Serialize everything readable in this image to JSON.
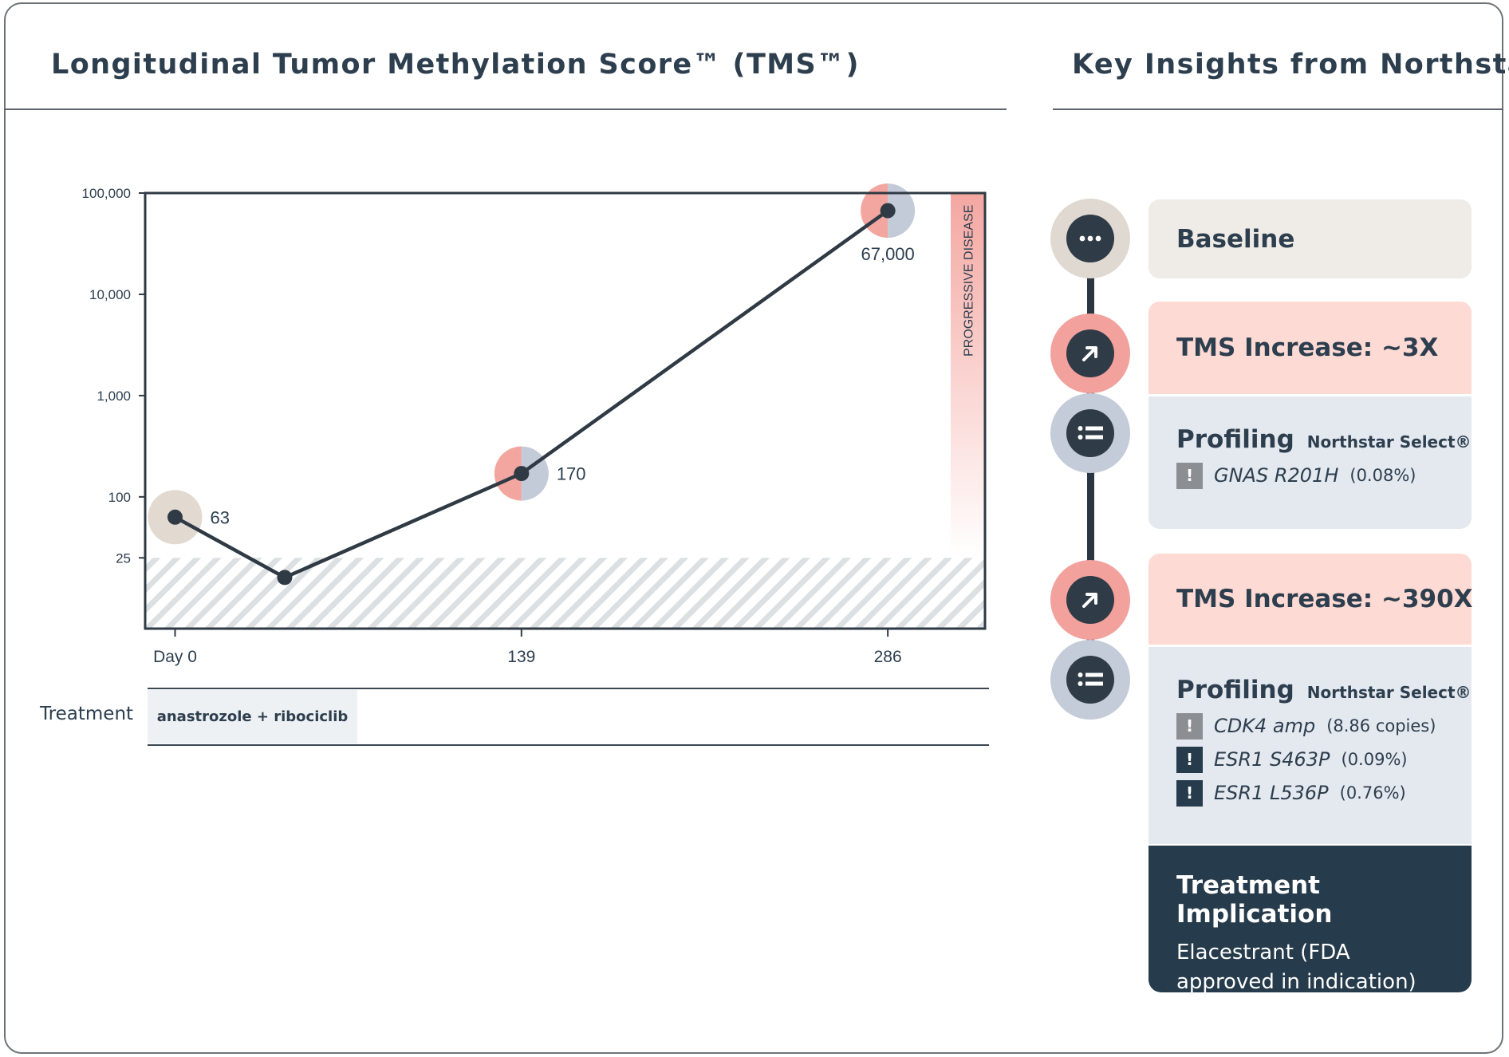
{
  "left_panel": {
    "title": "Longitudinal Tumor Methylation Score™ (TMS™)"
  },
  "right_panel": {
    "title": "Key Insights from Northstar"
  },
  "chart_data": {
    "type": "line",
    "scale": "log",
    "yticks": [
      {
        "value": 25,
        "label": "25"
      },
      {
        "value": 100,
        "label": "100"
      },
      {
        "value": 1000,
        "label": "1,000"
      },
      {
        "value": 10000,
        "label": "10,000"
      },
      {
        "value": 100000,
        "label": "100,000"
      }
    ],
    "xticks": [
      {
        "value": 0,
        "label": "Day 0"
      },
      {
        "value": 139,
        "label": "139"
      },
      {
        "value": 286,
        "label": "286"
      }
    ],
    "xlim": [
      -12,
      325
    ],
    "ylim": [
      5,
      100000
    ],
    "points": [
      {
        "x": 0,
        "y": 63,
        "label": "63",
        "marker": "baseline"
      },
      {
        "x": 44,
        "y": 16,
        "label": "",
        "marker": "none"
      },
      {
        "x": 139,
        "y": 170,
        "label": "170",
        "marker": "split"
      },
      {
        "x": 286,
        "y": 67000,
        "label": "67,000",
        "marker": "split"
      }
    ],
    "threshold": 25,
    "region_label": "PROGRESSIVE DISEASE",
    "colors": {
      "line": "#2f3a44",
      "beige": "#e2dad0",
      "pink": "#f3a6a0",
      "blue": "#c3cad8",
      "hatch": "#dcdfe2"
    }
  },
  "treatment": {
    "label": "Treatment",
    "regimen": "anastrozole + ribociclib"
  },
  "insights": {
    "baseline": {
      "label": "Baseline",
      "icon": "ellipsis-icon"
    },
    "increase_1": {
      "label": "TMS Increase: ~3X",
      "icon": "arrow-up-right-icon"
    },
    "profiling_1": {
      "title": "Profiling",
      "subtitle": "Northstar Select®",
      "icon": "list-icon",
      "mutations": [
        {
          "name": "GNAS R201H",
          "value": "(0.08%)",
          "flag": "gray"
        }
      ]
    },
    "increase_2": {
      "label": "TMS Increase: ~390X",
      "icon": "arrow-up-right-icon"
    },
    "profiling_2": {
      "title": "Profiling",
      "subtitle": "Northstar Select®",
      "icon": "list-icon",
      "mutations": [
        {
          "name": "CDK4 amp",
          "value": "(8.86 copies)",
          "flag": "gray"
        },
        {
          "name": "ESR1 S463P",
          "value": "(0.09%)",
          "flag": "dark"
        },
        {
          "name": "ESR1 L536P",
          "value": "(0.76%)",
          "flag": "dark"
        }
      ]
    },
    "implication": {
      "title": "Treatment Implication",
      "body": "Elacestrant (FDA approved in indication)"
    },
    "flag_symbol": "!"
  }
}
